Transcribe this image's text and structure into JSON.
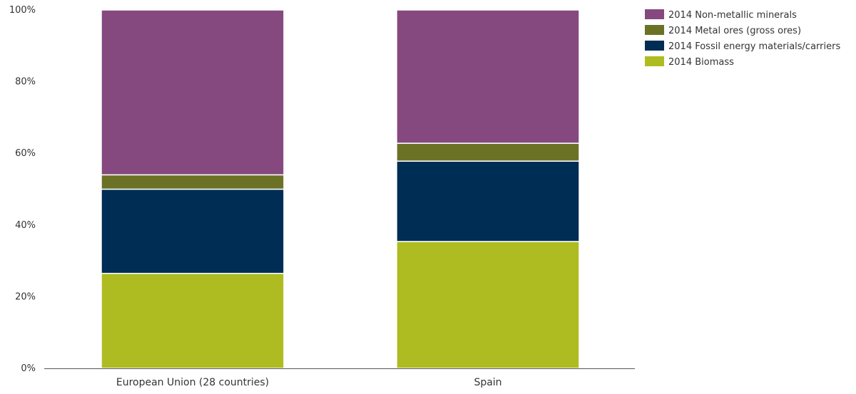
{
  "chart_data": {
    "type": "bar",
    "stacked": true,
    "normalized": true,
    "categories": [
      "European Union (28 countries)",
      "Spain"
    ],
    "series": [
      {
        "name": "2014 Biomass",
        "values": [
          26.5,
          35.5
        ],
        "color": "#aebc22"
      },
      {
        "name": "2014 Fossil energy materials/carriers",
        "values": [
          23.5,
          22.5
        ],
        "color": "#002d54"
      },
      {
        "name": "2014 Metal ores (gross ores)",
        "values": [
          4.0,
          5.0
        ],
        "color": "#6b7226"
      },
      {
        "name": "2014 Non-metallic minerals",
        "values": [
          46.0,
          37.3
        ],
        "color": "#86497f"
      }
    ],
    "ylim": [
      0,
      100
    ],
    "yticks": [
      0,
      20,
      40,
      60,
      80,
      100
    ],
    "ytick_labels": [
      "0%",
      "20%",
      "40%",
      "60%",
      "80%",
      "100%"
    ],
    "title": "",
    "xlabel": "",
    "ylabel": "",
    "grid": false,
    "legend_position": "top-right"
  }
}
